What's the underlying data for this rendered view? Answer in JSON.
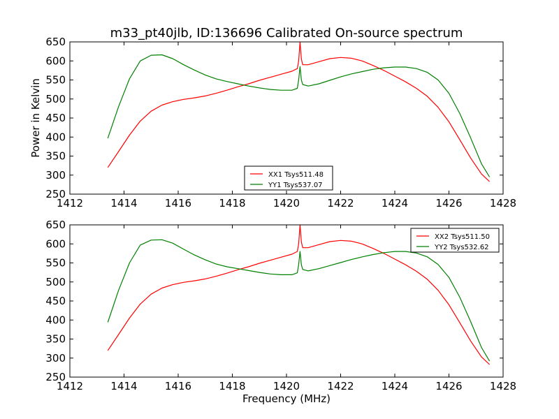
{
  "figure": {
    "title": "m33_pt40jlb, ID:136696 Calibrated On-source spectrum"
  },
  "chart_data": [
    {
      "type": "line",
      "title": "m33_pt40jlb, ID:136696 Calibrated On-source spectrum",
      "xlabel": "",
      "ylabel": "Power in Kelvin",
      "xlim": [
        1412,
        1428
      ],
      "ylim": [
        250,
        650
      ],
      "xticks": [
        "1412",
        "1414",
        "1416",
        "1418",
        "1420",
        "1422",
        "1424",
        "1426",
        "1428"
      ],
      "yticks": [
        "250",
        "300",
        "350",
        "400",
        "450",
        "500",
        "550",
        "600",
        "650"
      ],
      "legend_position": "lower-center",
      "grid": false,
      "series": [
        {
          "name": "XX1 Tsys511.48",
          "color": "#ff0000",
          "x": [
            1413.4,
            1413.8,
            1414.2,
            1414.6,
            1415.0,
            1415.4,
            1415.8,
            1416.2,
            1416.6,
            1417.0,
            1417.4,
            1417.8,
            1418.2,
            1418.6,
            1419.0,
            1419.4,
            1419.8,
            1420.2,
            1420.4,
            1420.45,
            1420.5,
            1420.55,
            1420.6,
            1420.8,
            1421.2,
            1421.6,
            1422.0,
            1422.4,
            1422.8,
            1423.2,
            1423.6,
            1424.0,
            1424.4,
            1424.8,
            1425.2,
            1425.6,
            1426.0,
            1426.4,
            1426.8,
            1427.2,
            1427.5
          ],
          "y": [
            320,
            362,
            405,
            442,
            468,
            484,
            493,
            499,
            503,
            508,
            515,
            523,
            532,
            540,
            549,
            557,
            565,
            573,
            580,
            600,
            650,
            605,
            590,
            590,
            598,
            606,
            609,
            607,
            600,
            588,
            575,
            560,
            545,
            528,
            507,
            478,
            440,
            393,
            345,
            303,
            283
          ]
        },
        {
          "name": "YY1 Tsys537.07",
          "color": "#008000",
          "x": [
            1413.4,
            1413.8,
            1414.2,
            1414.6,
            1415.0,
            1415.4,
            1415.8,
            1416.2,
            1416.6,
            1417.0,
            1417.4,
            1417.8,
            1418.2,
            1418.6,
            1419.0,
            1419.4,
            1419.8,
            1420.2,
            1420.4,
            1420.45,
            1420.5,
            1420.55,
            1420.6,
            1420.8,
            1421.2,
            1421.6,
            1422.0,
            1422.4,
            1422.8,
            1423.2,
            1423.6,
            1424.0,
            1424.4,
            1424.8,
            1425.2,
            1425.6,
            1426.0,
            1426.4,
            1426.8,
            1427.2,
            1427.5
          ],
          "y": [
            397,
            480,
            553,
            600,
            615,
            616,
            606,
            590,
            576,
            563,
            553,
            546,
            540,
            534,
            529,
            525,
            523,
            523,
            528,
            550,
            585,
            550,
            538,
            534,
            540,
            549,
            558,
            566,
            572,
            578,
            582,
            584,
            584,
            580,
            570,
            550,
            515,
            462,
            398,
            330,
            295
          ]
        }
      ]
    },
    {
      "type": "line",
      "title": "",
      "xlabel": "Frequency (MHz)",
      "ylabel": "",
      "xlim": [
        1412,
        1428
      ],
      "ylim": [
        250,
        650
      ],
      "xticks": [
        "1412",
        "1414",
        "1416",
        "1418",
        "1420",
        "1422",
        "1424",
        "1426",
        "1428"
      ],
      "yticks": [
        "250",
        "300",
        "350",
        "400",
        "450",
        "500",
        "550",
        "600",
        "650"
      ],
      "legend_position": "top-right",
      "grid": false,
      "series": [
        {
          "name": "XX2 Tsys511.50",
          "color": "#ff0000",
          "x": [
            1413.4,
            1413.8,
            1414.2,
            1414.6,
            1415.0,
            1415.4,
            1415.8,
            1416.2,
            1416.6,
            1417.0,
            1417.4,
            1417.8,
            1418.2,
            1418.6,
            1419.0,
            1419.4,
            1419.8,
            1420.2,
            1420.4,
            1420.45,
            1420.5,
            1420.55,
            1420.6,
            1420.8,
            1421.2,
            1421.6,
            1422.0,
            1422.4,
            1422.8,
            1423.2,
            1423.6,
            1424.0,
            1424.4,
            1424.8,
            1425.2,
            1425.6,
            1426.0,
            1426.4,
            1426.8,
            1427.2,
            1427.5
          ],
          "y": [
            320,
            362,
            405,
            442,
            468,
            484,
            493,
            499,
            503,
            508,
            515,
            523,
            532,
            540,
            549,
            557,
            565,
            573,
            580,
            600,
            650,
            605,
            590,
            590,
            598,
            606,
            609,
            607,
            600,
            588,
            575,
            560,
            545,
            528,
            507,
            478,
            440,
            393,
            345,
            303,
            283
          ]
        },
        {
          "name": "YY2 Tsys532.62",
          "color": "#008000",
          "x": [
            1413.4,
            1413.8,
            1414.2,
            1414.6,
            1415.0,
            1415.4,
            1415.8,
            1416.2,
            1416.6,
            1417.0,
            1417.4,
            1417.8,
            1418.2,
            1418.6,
            1419.0,
            1419.4,
            1419.8,
            1420.2,
            1420.4,
            1420.45,
            1420.5,
            1420.55,
            1420.6,
            1420.8,
            1421.2,
            1421.6,
            1422.0,
            1422.4,
            1422.8,
            1423.2,
            1423.6,
            1424.0,
            1424.4,
            1424.8,
            1425.2,
            1425.6,
            1426.0,
            1426.4,
            1426.8,
            1427.2,
            1427.5
          ],
          "y": [
            394,
            478,
            550,
            597,
            610,
            611,
            602,
            586,
            571,
            558,
            547,
            540,
            535,
            530,
            525,
            521,
            519,
            519,
            524,
            545,
            580,
            545,
            533,
            529,
            535,
            543,
            551,
            559,
            566,
            572,
            577,
            580,
            580,
            576,
            566,
            546,
            512,
            460,
            396,
            328,
            292
          ]
        }
      ]
    }
  ]
}
